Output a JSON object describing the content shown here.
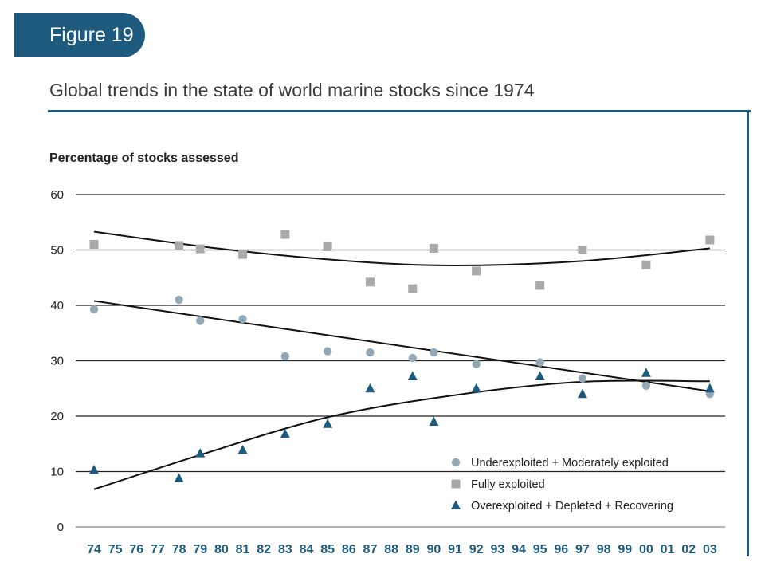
{
  "header": {
    "figure_label": "Figure 19"
  },
  "chart_data": {
    "type": "scatter",
    "title": "Global trends in the state of world marine stocks since 1974",
    "ylabel": "Percentage of stocks assessed",
    "xlabel": "",
    "ylim": [
      0,
      60
    ],
    "yticks": [
      "0",
      "10",
      "20",
      "30",
      "40",
      "50",
      "60"
    ],
    "categories": [
      "74",
      "75",
      "76",
      "77",
      "78",
      "79",
      "80",
      "81",
      "82",
      "83",
      "84",
      "85",
      "86",
      "87",
      "88",
      "89",
      "90",
      "91",
      "92",
      "93",
      "94",
      "95",
      "96",
      "97",
      "98",
      "99",
      "00",
      "01",
      "02",
      "03"
    ],
    "grid": true,
    "legend_position": "bottom-right",
    "series": [
      {
        "name": "Underexploited + Moderately exploited",
        "marker": "circle",
        "color": "#93a9b6",
        "points": [
          [
            "74",
            39.3
          ],
          [
            "78",
            41
          ],
          [
            "79",
            37.2
          ],
          [
            "81",
            37.5
          ],
          [
            "83",
            30.8
          ],
          [
            "85",
            31.7
          ],
          [
            "87",
            31.5
          ],
          [
            "89",
            30.5
          ],
          [
            "90",
            31.5
          ],
          [
            "92",
            29.4
          ],
          [
            "95",
            29.7
          ],
          [
            "97",
            26.8
          ],
          [
            "00",
            25.5
          ],
          [
            "03",
            24
          ]
        ],
        "trend": [
          [
            "74",
            40.8
          ],
          [
            "03",
            24.5
          ]
        ]
      },
      {
        "name": "Fully exploited",
        "marker": "square",
        "color": "#a9a9a9",
        "points": [
          [
            "74",
            51
          ],
          [
            "78",
            50.8
          ],
          [
            "79",
            50.2
          ],
          [
            "81",
            49.2
          ],
          [
            "83",
            52.8
          ],
          [
            "85",
            50.6
          ],
          [
            "87",
            44.2
          ],
          [
            "89",
            43
          ],
          [
            "90",
            50.3
          ],
          [
            "92",
            46.2
          ],
          [
            "95",
            43.6
          ],
          [
            "97",
            50
          ],
          [
            "00",
            47.3
          ],
          [
            "03",
            51.8
          ]
        ],
        "trend": [
          [
            "74",
            53.3
          ],
          [
            "80",
            50.2
          ],
          [
            "86",
            48
          ],
          [
            "91",
            47.2
          ],
          [
            "97",
            48
          ],
          [
            "03",
            50.3
          ]
        ]
      },
      {
        "name": "Overexploited + Depleted + Recovering",
        "marker": "triangle",
        "color": "#1d5a7e",
        "points": [
          [
            "74",
            10.3
          ],
          [
            "78",
            8.8
          ],
          [
            "79",
            13.3
          ],
          [
            "81",
            13.9
          ],
          [
            "83",
            16.8
          ],
          [
            "85",
            18.6
          ],
          [
            "87",
            25
          ],
          [
            "89",
            27.2
          ],
          [
            "90",
            19
          ],
          [
            "92",
            25
          ],
          [
            "95",
            27.2
          ],
          [
            "97",
            24
          ],
          [
            "00",
            27.8
          ],
          [
            "03",
            25
          ]
        ],
        "trend": [
          [
            "74",
            6.8
          ],
          [
            "79",
            13
          ],
          [
            "85",
            19.8
          ],
          [
            "91",
            23.8
          ],
          [
            "97",
            26.2
          ],
          [
            "03",
            26.3
          ]
        ]
      }
    ]
  }
}
